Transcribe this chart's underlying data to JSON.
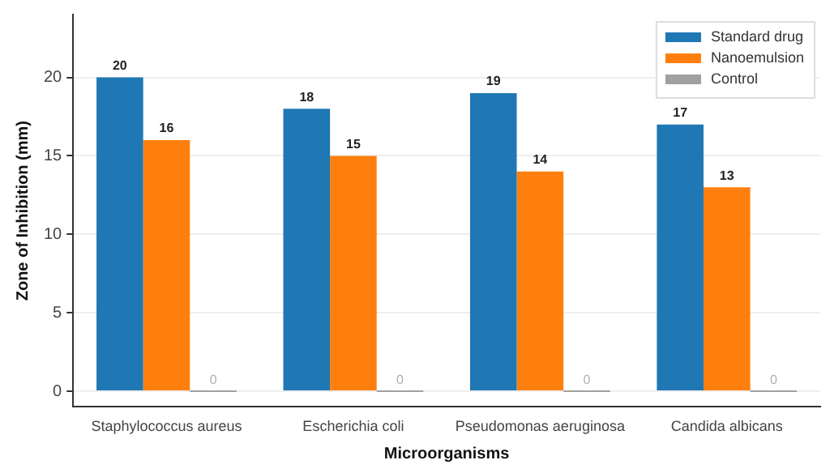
{
  "chart_data": {
    "type": "bar",
    "xlabel": "Microorganisms",
    "ylabel": "Zone of Inhibition (mm)",
    "categories": [
      "Staphylococcus aureus",
      "Escherichia coli",
      "Pseudomonas aeruginosa",
      "Candida albicans"
    ],
    "series": [
      {
        "name": "Standard drug",
        "color": "#1f77b4",
        "values": [
          20,
          18,
          19,
          17
        ]
      },
      {
        "name": "Nanoemulsion",
        "color": "#ff7f0e",
        "values": [
          16,
          15,
          14,
          13
        ]
      },
      {
        "name": "Control",
        "color": "#a0a0a0",
        "values": [
          0,
          0,
          0,
          0
        ]
      }
    ],
    "ylim": [
      -1,
      24
    ],
    "yticks": [
      0,
      5,
      10,
      15,
      20
    ],
    "grid": "y",
    "legend": "top right",
    "data_labels": true
  }
}
